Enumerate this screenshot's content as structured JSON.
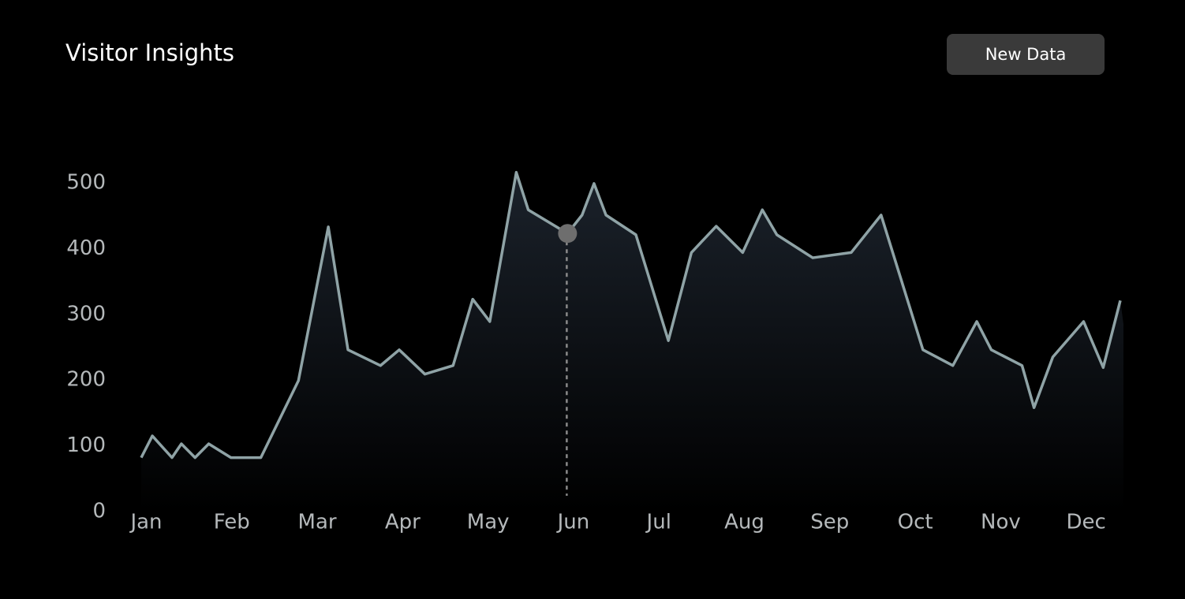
{
  "button": {
    "label": "New Data"
  },
  "chart_data": {
    "type": "line",
    "title": "Visitor Insights",
    "color": "#8fa3a6",
    "area": true,
    "x": [
      -0.06,
      0.07,
      0.3,
      0.41,
      0.57,
      0.73,
      0.99,
      1.34,
      1.78,
      2.13,
      2.36,
      2.74,
      2.96,
      3.26,
      3.59,
      3.82,
      4.02,
      4.33,
      4.47,
      4.93,
      5.1,
      5.24,
      5.38,
      5.73,
      6.11,
      6.38,
      6.67,
      6.98,
      7.21,
      7.38,
      7.8,
      8.25,
      8.6,
      9.09,
      9.44,
      9.72,
      9.89,
      10.25,
      10.39,
      10.61,
      10.97,
      11.2,
      11.4
    ],
    "values": [
      82,
      115,
      82,
      103,
      82,
      103,
      82,
      82,
      199,
      433,
      246,
      222,
      246,
      209,
      222,
      323,
      289,
      516,
      459,
      423,
      451,
      499,
      451,
      421,
      260,
      394,
      434,
      394,
      459,
      421,
      386,
      394,
      451,
      246,
      222,
      289,
      246,
      222,
      158,
      235,
      289,
      219,
      321
    ],
    "marker": {
      "x": 4.93,
      "y": 423
    },
    "xlim": [
      -0.06,
      11.4
    ],
    "xticks": [
      {
        "value": 0,
        "label": "Jan"
      },
      {
        "value": 1,
        "label": "Feb"
      },
      {
        "value": 2,
        "label": "Mar"
      },
      {
        "value": 3,
        "label": "Apr"
      },
      {
        "value": 4,
        "label": "May"
      },
      {
        "value": 5,
        "label": "Jun"
      },
      {
        "value": 6,
        "label": "Jul"
      },
      {
        "value": 7,
        "label": "Aug"
      },
      {
        "value": 8,
        "label": "Sep"
      },
      {
        "value": 9,
        "label": "Oct"
      },
      {
        "value": 10,
        "label": "Nov"
      },
      {
        "value": 11,
        "label": "Dec"
      }
    ],
    "ylim": [
      0,
      500
    ],
    "yticks": [
      0,
      100,
      200,
      300,
      400,
      500
    ],
    "grid": false
  }
}
